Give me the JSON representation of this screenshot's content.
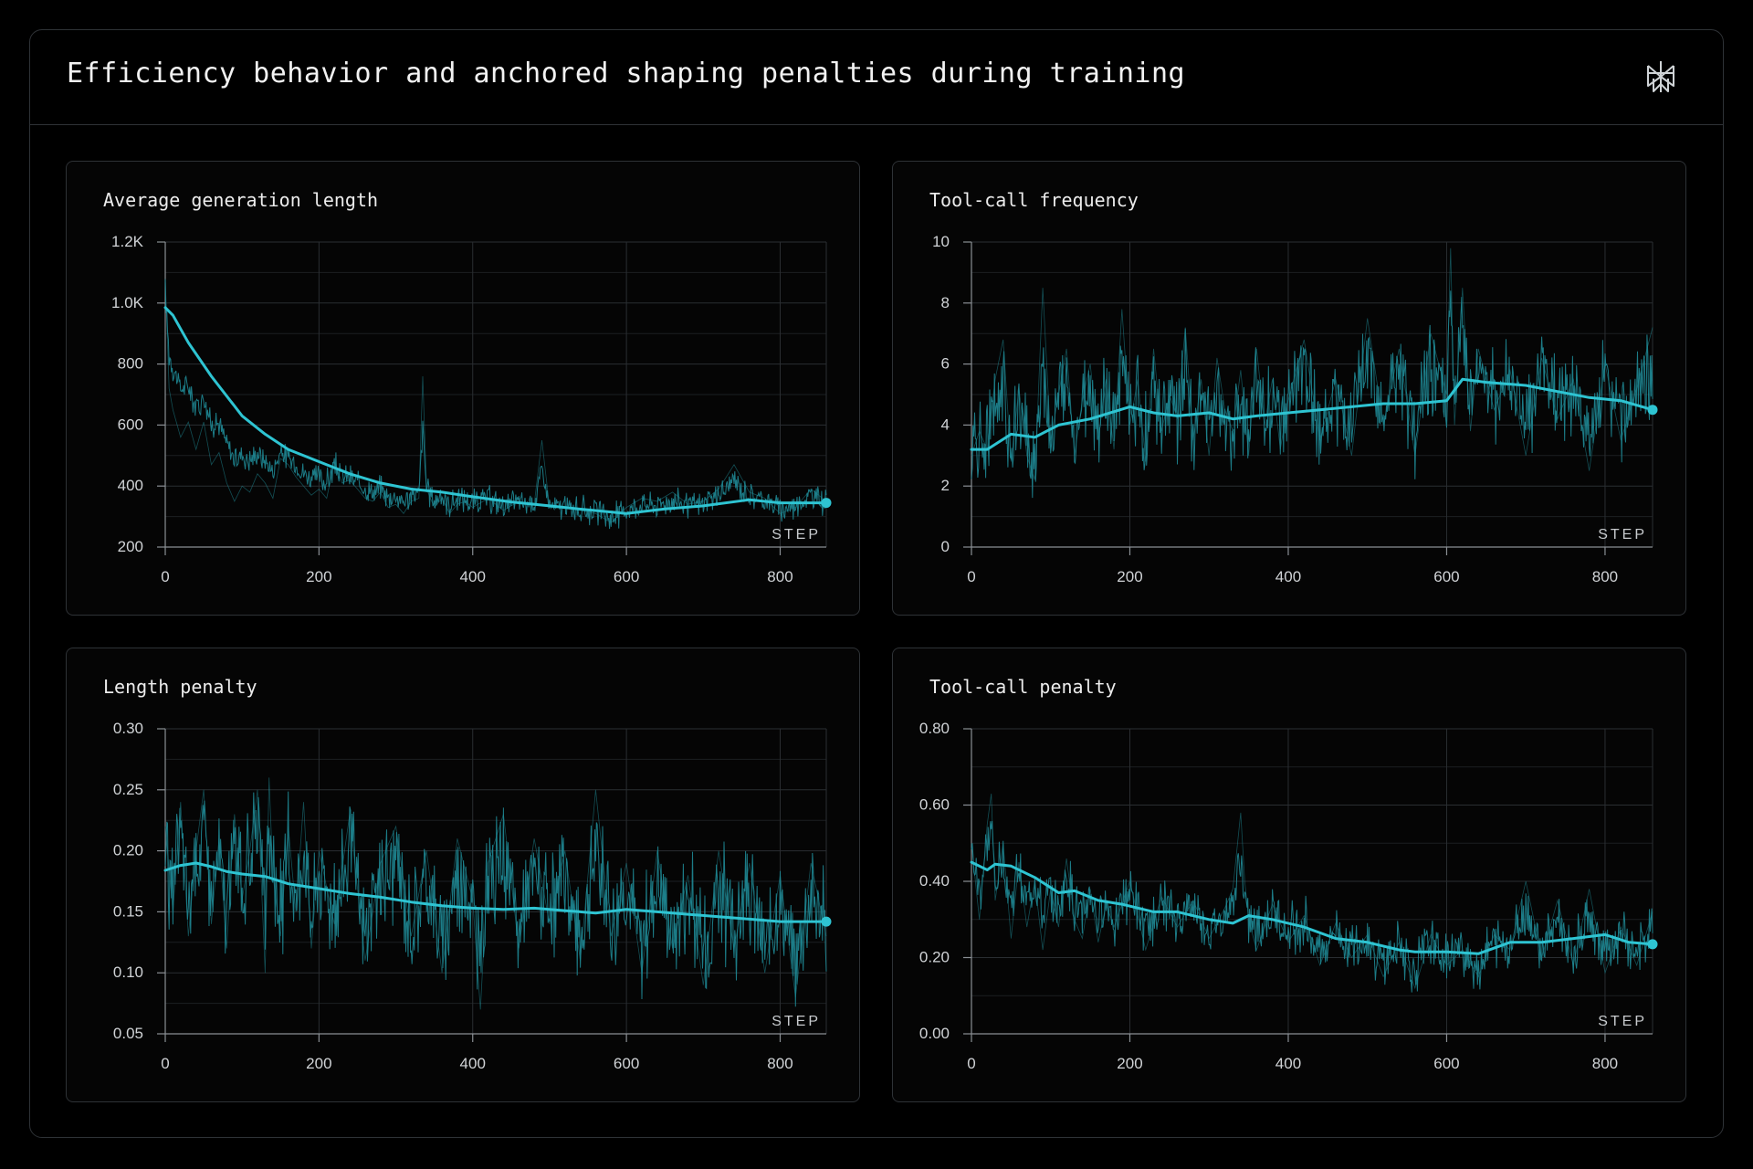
{
  "page": {
    "title": "Efficiency behavior and anchored shaping penalties during training"
  },
  "icons": {
    "logo": "perplexity-logo-icon"
  },
  "colors": {
    "accent": "#2ec4d2",
    "raw": "#1f8a96",
    "grid": "#2a2e32",
    "background": "#000000"
  },
  "chart_data": [
    {
      "type": "line",
      "title": "Average generation length",
      "xlabel": "STEP",
      "ylabel": "",
      "xlim": [
        0,
        860
      ],
      "ylim": [
        200,
        1200
      ],
      "xticks": [
        0,
        200,
        400,
        600,
        800
      ],
      "xtick_labels": [
        "0",
        "200",
        "400",
        "600",
        "800"
      ],
      "yticks": [
        200,
        400,
        600,
        800,
        1000,
        1200
      ],
      "ytick_labels": [
        "200",
        "400",
        "600",
        "800",
        "1.0K",
        "1.2K"
      ],
      "grid": true,
      "series": [
        {
          "role": "smoothed",
          "x": [
            0,
            10,
            30,
            60,
            100,
            130,
            160,
            200,
            240,
            280,
            320,
            360,
            400,
            450,
            500,
            550,
            600,
            650,
            700,
            760,
            800,
            860
          ],
          "y": [
            985,
            960,
            870,
            760,
            630,
            570,
            520,
            480,
            440,
            410,
            390,
            380,
            365,
            348,
            335,
            322,
            310,
            325,
            335,
            355,
            345,
            345
          ]
        },
        {
          "role": "raw",
          "x": [
            0,
            5,
            10,
            20,
            30,
            40,
            50,
            60,
            70,
            80,
            90,
            100,
            110,
            120,
            130,
            140,
            150,
            160,
            170,
            180,
            190,
            200,
            210,
            220,
            230,
            240,
            250,
            260,
            270,
            280,
            290,
            300,
            310,
            320,
            330,
            335,
            340,
            350,
            360,
            370,
            380,
            390,
            400,
            420,
            440,
            460,
            480,
            490,
            500,
            520,
            540,
            560,
            580,
            600,
            620,
            640,
            660,
            680,
            700,
            720,
            740,
            760,
            780,
            800,
            820,
            840,
            860
          ],
          "y": [
            1080,
            720,
            650,
            560,
            610,
            520,
            610,
            470,
            510,
            410,
            350,
            400,
            380,
            440,
            410,
            360,
            490,
            470,
            430,
            400,
            370,
            390,
            360,
            480,
            410,
            420,
            390,
            360,
            350,
            380,
            330,
            340,
            310,
            350,
            360,
            760,
            390,
            330,
            360,
            310,
            340,
            350,
            330,
            360,
            320,
            350,
            340,
            550,
            330,
            330,
            320,
            310,
            280,
            330,
            360,
            350,
            380,
            340,
            350,
            390,
            470,
            380,
            360,
            310,
            330,
            390,
            350
          ]
        }
      ]
    },
    {
      "type": "line",
      "title": "Tool-call frequency",
      "xlabel": "STEP",
      "ylabel": "",
      "xlim": [
        0,
        860
      ],
      "ylim": [
        0,
        10
      ],
      "xticks": [
        0,
        200,
        400,
        600,
        800
      ],
      "xtick_labels": [
        "0",
        "200",
        "400",
        "600",
        "800"
      ],
      "yticks": [
        0,
        2,
        4,
        6,
        8,
        10
      ],
      "ytick_labels": [
        "0",
        "2",
        "4",
        "6",
        "8",
        "10"
      ],
      "grid": true,
      "series": [
        {
          "role": "smoothed",
          "x": [
            0,
            20,
            50,
            80,
            110,
            150,
            200,
            230,
            260,
            300,
            330,
            360,
            400,
            440,
            480,
            520,
            560,
            600,
            620,
            650,
            700,
            740,
            780,
            820,
            860
          ],
          "y": [
            3.2,
            3.2,
            3.7,
            3.6,
            4.0,
            4.2,
            4.6,
            4.4,
            4.3,
            4.4,
            4.2,
            4.3,
            4.4,
            4.5,
            4.6,
            4.7,
            4.7,
            4.8,
            5.5,
            5.4,
            5.3,
            5.1,
            4.9,
            4.8,
            4.5
          ]
        },
        {
          "role": "raw",
          "x": [
            0,
            10,
            20,
            30,
            40,
            50,
            60,
            70,
            80,
            90,
            100,
            110,
            120,
            130,
            140,
            150,
            160,
            170,
            180,
            190,
            200,
            210,
            220,
            230,
            240,
            250,
            260,
            270,
            280,
            290,
            300,
            310,
            320,
            330,
            340,
            350,
            360,
            370,
            380,
            390,
            400,
            420,
            440,
            460,
            480,
            500,
            520,
            540,
            560,
            580,
            600,
            605,
            610,
            620,
            630,
            640,
            660,
            680,
            700,
            720,
            740,
            760,
            780,
            800,
            820,
            840,
            860
          ],
          "y": [
            3.0,
            3.8,
            3.2,
            5.5,
            6.8,
            2.8,
            5.2,
            3.0,
            2.2,
            8.5,
            3.5,
            5.0,
            6.5,
            3.0,
            4.8,
            6.0,
            3.5,
            5.5,
            3.2,
            7.8,
            4.0,
            5.5,
            2.8,
            6.5,
            3.8,
            5.0,
            4.2,
            7.2,
            3.5,
            5.5,
            3.0,
            6.2,
            4.5,
            3.8,
            5.8,
            3.0,
            6.5,
            4.0,
            5.5,
            3.2,
            4.8,
            6.8,
            3.5,
            5.5,
            3.0,
            7.5,
            4.0,
            6.5,
            3.0,
            7.0,
            5.0,
            9.8,
            4.0,
            8.5,
            3.8,
            6.5,
            4.5,
            5.8,
            3.0,
            6.2,
            4.2,
            5.5,
            2.5,
            6.0,
            3.5,
            5.2,
            7.2
          ]
        }
      ]
    },
    {
      "type": "line",
      "title": "Length penalty",
      "xlabel": "STEP",
      "ylabel": "",
      "xlim": [
        0,
        860
      ],
      "ylim": [
        0.05,
        0.3
      ],
      "xticks": [
        0,
        200,
        400,
        600,
        800
      ],
      "xtick_labels": [
        "0",
        "200",
        "400",
        "600",
        "800"
      ],
      "yticks": [
        0.05,
        0.1,
        0.15,
        0.2,
        0.25,
        0.3
      ],
      "ytick_labels": [
        "0.05",
        "0.10",
        "0.15",
        "0.20",
        "0.25",
        "0.30"
      ],
      "grid": true,
      "series": [
        {
          "role": "smoothed",
          "x": [
            0,
            20,
            40,
            60,
            80,
            100,
            130,
            160,
            200,
            240,
            280,
            320,
            360,
            400,
            440,
            480,
            520,
            560,
            600,
            640,
            680,
            720,
            760,
            800,
            860
          ],
          "y": [
            0.184,
            0.188,
            0.19,
            0.187,
            0.183,
            0.181,
            0.179,
            0.173,
            0.169,
            0.165,
            0.162,
            0.158,
            0.155,
            0.153,
            0.152,
            0.153,
            0.151,
            0.149,
            0.152,
            0.15,
            0.148,
            0.146,
            0.144,
            0.142,
            0.142
          ]
        },
        {
          "role": "raw",
          "x": [
            0,
            10,
            20,
            30,
            40,
            50,
            60,
            70,
            80,
            90,
            100,
            110,
            120,
            130,
            135,
            140,
            150,
            160,
            170,
            180,
            190,
            200,
            220,
            240,
            260,
            280,
            300,
            320,
            340,
            360,
            380,
            400,
            410,
            420,
            440,
            460,
            480,
            500,
            520,
            540,
            560,
            580,
            600,
            620,
            640,
            660,
            680,
            700,
            720,
            740,
            760,
            780,
            800,
            820,
            840,
            860
          ],
          "y": [
            0.22,
            0.15,
            0.24,
            0.13,
            0.2,
            0.25,
            0.14,
            0.21,
            0.12,
            0.23,
            0.16,
            0.2,
            0.25,
            0.1,
            0.26,
            0.18,
            0.13,
            0.22,
            0.15,
            0.24,
            0.12,
            0.2,
            0.14,
            0.23,
            0.11,
            0.19,
            0.22,
            0.13,
            0.2,
            0.1,
            0.21,
            0.16,
            0.07,
            0.19,
            0.23,
            0.12,
            0.21,
            0.14,
            0.2,
            0.11,
            0.25,
            0.13,
            0.19,
            0.1,
            0.2,
            0.12,
            0.18,
            0.09,
            0.2,
            0.12,
            0.19,
            0.1,
            0.18,
            0.08,
            0.19,
            0.13
          ]
        }
      ]
    },
    {
      "type": "line",
      "title": "Tool-call penalty",
      "xlabel": "STEP",
      "ylabel": "",
      "xlim": [
        0,
        860
      ],
      "ylim": [
        0.0,
        0.8
      ],
      "xticks": [
        0,
        200,
        400,
        600,
        800
      ],
      "xtick_labels": [
        "0",
        "200",
        "400",
        "600",
        "800"
      ],
      "yticks": [
        0.0,
        0.2,
        0.4,
        0.6,
        0.8
      ],
      "ytick_labels": [
        "0.00",
        "0.20",
        "0.40",
        "0.60",
        "0.80"
      ],
      "grid": true,
      "series": [
        {
          "role": "smoothed",
          "x": [
            0,
            10,
            20,
            30,
            50,
            80,
            110,
            130,
            160,
            190,
            230,
            260,
            300,
            330,
            350,
            380,
            420,
            460,
            500,
            540,
            560,
            600,
            640,
            680,
            720,
            760,
            800,
            830,
            860
          ],
          "y": [
            0.45,
            0.44,
            0.43,
            0.445,
            0.44,
            0.41,
            0.37,
            0.375,
            0.35,
            0.34,
            0.32,
            0.32,
            0.3,
            0.29,
            0.31,
            0.3,
            0.28,
            0.25,
            0.24,
            0.22,
            0.215,
            0.215,
            0.21,
            0.24,
            0.24,
            0.25,
            0.26,
            0.24,
            0.235
          ]
        },
        {
          "role": "raw",
          "x": [
            0,
            10,
            20,
            25,
            30,
            40,
            50,
            60,
            70,
            80,
            90,
            100,
            110,
            120,
            130,
            140,
            150,
            160,
            170,
            180,
            200,
            220,
            240,
            260,
            280,
            300,
            320,
            330,
            340,
            345,
            350,
            360,
            380,
            400,
            420,
            440,
            460,
            480,
            500,
            520,
            540,
            560,
            580,
            600,
            620,
            640,
            660,
            680,
            700,
            720,
            740,
            760,
            780,
            800,
            820,
            840,
            860
          ],
          "y": [
            0.5,
            0.3,
            0.55,
            0.63,
            0.35,
            0.5,
            0.25,
            0.45,
            0.28,
            0.4,
            0.22,
            0.38,
            0.28,
            0.46,
            0.3,
            0.25,
            0.38,
            0.24,
            0.34,
            0.28,
            0.4,
            0.22,
            0.36,
            0.28,
            0.35,
            0.25,
            0.33,
            0.38,
            0.58,
            0.4,
            0.3,
            0.22,
            0.34,
            0.24,
            0.31,
            0.18,
            0.29,
            0.2,
            0.26,
            0.15,
            0.24,
            0.12,
            0.26,
            0.18,
            0.22,
            0.15,
            0.26,
            0.22,
            0.4,
            0.2,
            0.35,
            0.18,
            0.38,
            0.16,
            0.28,
            0.18,
            0.32
          ]
        }
      ]
    }
  ]
}
